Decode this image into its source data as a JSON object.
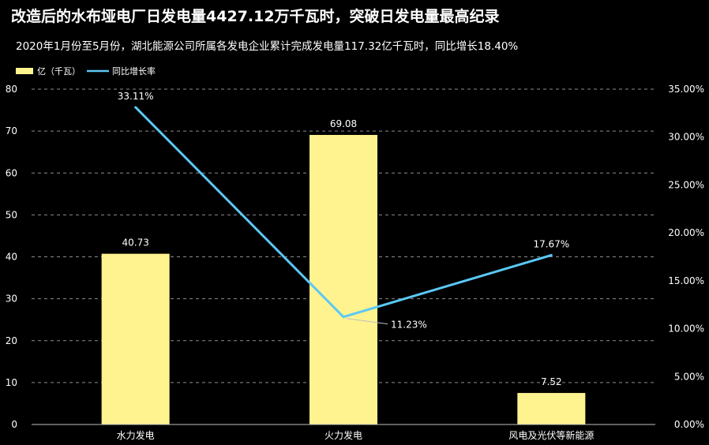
{
  "title": "改造后的水布垭电厂日发电量4427.12万千瓦时，突破日发电量最高纪录",
  "subtitle": "2020年1月份至5月份，湖北能源公司所属各发电企业累计完成发电量117.32亿千瓦时，同比增长18.40%",
  "colors": {
    "bar": "#fff38f",
    "line": "#5bc8f5",
    "grid": "#8c8c8c",
    "background": "#000000"
  },
  "chart_data": {
    "type": "bar",
    "categories": [
      "水力发电",
      "火力发电",
      "风电及光伏等新能源"
    ],
    "series": [
      {
        "name": "亿（千瓦）",
        "type": "bar",
        "axis": "left",
        "values": [
          40.73,
          69.08,
          7.52
        ],
        "labels": [
          "40.73",
          "69.08",
          "7.52"
        ]
      },
      {
        "name": "同比增长率",
        "type": "line",
        "axis": "right",
        "values": [
          33.11,
          11.23,
          17.67
        ],
        "labels": [
          "33.11%",
          "11.23%",
          "17.67%"
        ]
      }
    ],
    "ylim": [
      0,
      80
    ],
    "y_ticks": [
      "0",
      "10",
      "20",
      "30",
      "40",
      "50",
      "60",
      "70",
      "80"
    ],
    "y2lim": [
      0,
      35
    ],
    "y2_ticks": [
      "0.00%",
      "5.00%",
      "10.00%",
      "15.00%",
      "20.00%",
      "25.00%",
      "30.00%",
      "35.00%"
    ],
    "grid": true,
    "legend_position": "top-left"
  }
}
